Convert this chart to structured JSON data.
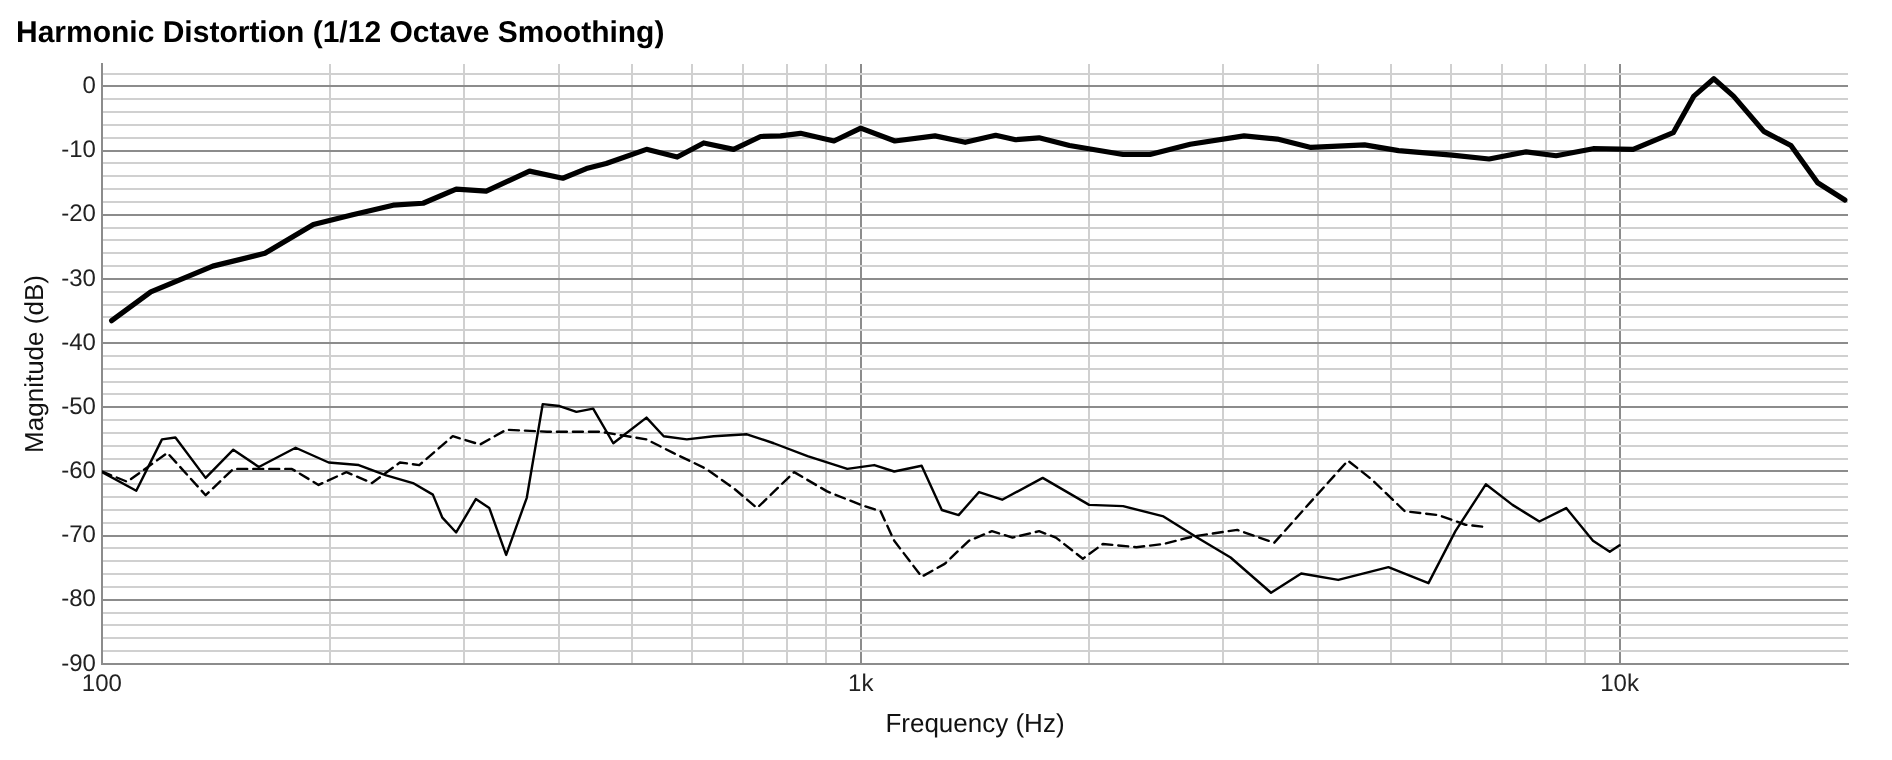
{
  "chart_data": {
    "type": "line",
    "title": "Harmonic Distortion (1/12 Octave Smoothing)",
    "xlabel": "Frequency (Hz)",
    "ylabel": "Magnitude (dB)",
    "log": "x",
    "grid": true,
    "legend": false,
    "marker": "none",
    "xlim": [
      100,
      20000
    ],
    "ylim": [
      -90,
      3.5
    ],
    "xticks": [
      100,
      {
        "value": 200,
        "label": null
      },
      {
        "value": 300,
        "label": null
      },
      {
        "value": 400,
        "label": null
      },
      {
        "value": 500,
        "label": null
      },
      {
        "value": 600,
        "label": null
      },
      {
        "value": 700,
        "label": null
      },
      {
        "value": 800,
        "label": null
      },
      {
        "value": 900,
        "label": null
      },
      {
        "value": 1000,
        "label": "1k"
      },
      {
        "value": 2000,
        "label": null
      },
      {
        "value": 3000,
        "label": null
      },
      {
        "value": 4000,
        "label": null
      },
      {
        "value": 5000,
        "label": null
      },
      {
        "value": 6000,
        "label": null
      },
      {
        "value": 7000,
        "label": null
      },
      {
        "value": 8000,
        "label": null
      },
      {
        "value": 9000,
        "label": null
      },
      {
        "value": 10000,
        "label": "10k"
      }
    ],
    "yticks": [
      -90,
      {
        "value": -88,
        "label": null
      },
      {
        "value": -86,
        "label": null
      },
      {
        "value": -84,
        "label": null
      },
      {
        "value": -82,
        "label": null
      },
      -80,
      {
        "value": -78,
        "label": null
      },
      {
        "value": -76,
        "label": null
      },
      {
        "value": -74,
        "label": null
      },
      {
        "value": -72,
        "label": null
      },
      -70,
      {
        "value": -68,
        "label": null
      },
      {
        "value": -66,
        "label": null
      },
      {
        "value": -64,
        "label": null
      },
      {
        "value": -62,
        "label": null
      },
      -60,
      {
        "value": -58,
        "label": null
      },
      {
        "value": -56,
        "label": null
      },
      {
        "value": -54,
        "label": null
      },
      {
        "value": -52,
        "label": null
      },
      -50,
      {
        "value": -48,
        "label": null
      },
      {
        "value": -46,
        "label": null
      },
      {
        "value": -44,
        "label": null
      },
      {
        "value": -42,
        "label": null
      },
      -40,
      {
        "value": -38,
        "label": null
      },
      {
        "value": -36,
        "label": null
      },
      {
        "value": -34,
        "label": null
      },
      {
        "value": -32,
        "label": null
      },
      -30,
      {
        "value": -28,
        "label": null
      },
      {
        "value": -26,
        "label": null
      },
      {
        "value": -24,
        "label": null
      },
      {
        "value": -22,
        "label": null
      },
      -20,
      {
        "value": -18,
        "label": null
      },
      {
        "value": -16,
        "label": null
      },
      {
        "value": -14,
        "label": null
      },
      {
        "value": -12,
        "label": null
      },
      -10,
      {
        "value": -8,
        "label": null
      },
      {
        "value": -6,
        "label": null
      },
      {
        "value": -4,
        "label": null
      },
      {
        "value": -2,
        "label": null
      },
      0,
      {
        "value": 2,
        "label": null
      }
    ],
    "series": [
      {
        "color": "#000000",
        "line_style": "solid",
        "x": [
          103,
          116,
          140,
          164,
          190,
          214,
          242,
          265,
          293,
          321,
          366,
          405,
          435,
          462,
          522,
          573,
          621,
          680,
          738,
          784,
          833,
          922,
          1000,
          1109,
          1253,
          1373,
          1506,
          1600,
          1718,
          1884,
          2217,
          2405,
          2718,
          3200,
          3540,
          3920,
          4613,
          5114,
          6014,
          6731,
          7531,
          8250,
          9230,
          10420,
          11770,
          12530,
          13310,
          14130,
          15490,
          16820,
          18240,
          19810
        ],
        "values": [
          -36.5,
          -32,
          -28,
          -26,
          -21.5,
          -20,
          -18.5,
          -18.2,
          -16,
          -16.3,
          -13.2,
          -14.3,
          -12.8,
          -12,
          -9.8,
          -11,
          -8.8,
          -9.8,
          -7.8,
          -7.7,
          -7.3,
          -8.5,
          -6.5,
          -8.5,
          -7.7,
          -8.7,
          -7.6,
          -8.3,
          -8,
          -9.2,
          -10.6,
          -10.6,
          -9,
          -7.7,
          -8.2,
          -9.5,
          -9.1,
          -10,
          -10.7,
          -11.3,
          -10.2,
          -10.8,
          -9.7,
          -9.8,
          -7.2,
          -1.5,
          1.2,
          -1.5,
          -7,
          -9.2,
          -15,
          -17.7
        ]
      },
      {
        "color": "#000000",
        "line_style": "solid",
        "x": [
          100,
          111,
          120,
          125,
          137,
          149,
          161,
          180,
          199,
          218,
          237,
          257,
          273,
          281,
          293,
          311,
          324,
          341,
          363,
          381,
          401,
          422,
          444,
          472,
          522,
          550,
          590,
          640,
          708,
          768,
          851,
          960,
          1042,
          1107,
          1203,
          1279,
          1346,
          1432,
          1536,
          1737,
          2000,
          2217,
          2506,
          2775,
          3072,
          3473,
          3806,
          4259,
          4959,
          5600,
          6077,
          6664,
          7226,
          7840,
          8505,
          9225,
          9707,
          10000
        ],
        "values": [
          -60.1,
          -63,
          -55,
          -54.7,
          -61,
          -56.6,
          -59.3,
          -56.3,
          -58.6,
          -59,
          -60.6,
          -61.8,
          -63.6,
          -67.2,
          -69.5,
          -64.3,
          -65.7,
          -73,
          -64.1,
          -49.5,
          -49.8,
          -50.7,
          -50.2,
          -55.6,
          -51.6,
          -54.5,
          -55,
          -54.5,
          -54.2,
          -55.6,
          -57.6,
          -59.6,
          -59,
          -60,
          -59.1,
          -66,
          -66.8,
          -63.2,
          -64.4,
          -61,
          -65.2,
          -65.4,
          -67,
          -70.3,
          -73.4,
          -78.9,
          -75.9,
          -76.9,
          -74.9,
          -77.4,
          -69.3,
          -62,
          -65.2,
          -67.8,
          -65.7,
          -70.8,
          -72.5,
          -71.5
        ]
      },
      {
        "color": "#000000",
        "line_style": "dashed",
        "x": [
          100,
          108,
          122,
          137,
          149,
          178,
          193,
          210,
          227,
          247,
          262,
          290,
          315,
          341,
          386,
          453,
          522,
          566,
          626,
          680,
          730,
          817,
          903,
          1000,
          1062,
          1107,
          1203,
          1290,
          1388,
          1489,
          1585,
          1718,
          1808,
          1962,
          2085,
          2308,
          2506,
          2747,
          3135,
          3507,
          3920,
          4385,
          4710,
          5212,
          5775,
          6265,
          6590
        ],
        "values": [
          -60,
          -61.6,
          -57.1,
          -63.7,
          -59.6,
          -59.6,
          -62.1,
          -60.1,
          -61.8,
          -58.6,
          -59,
          -54.5,
          -55.8,
          -53.5,
          -53.8,
          -53.8,
          -55,
          -57.1,
          -59.6,
          -62.6,
          -65.7,
          -60.1,
          -63.1,
          -65.2,
          -66.2,
          -70.8,
          -76.4,
          -74.4,
          -70.8,
          -69.3,
          -70.3,
          -69.3,
          -70.3,
          -73.6,
          -71.3,
          -71.8,
          -71.3,
          -70.1,
          -69.1,
          -71.1,
          -64.7,
          -58.3,
          -61.2,
          -66.2,
          -66.8,
          -68.3,
          -68.6
        ]
      }
    ]
  }
}
